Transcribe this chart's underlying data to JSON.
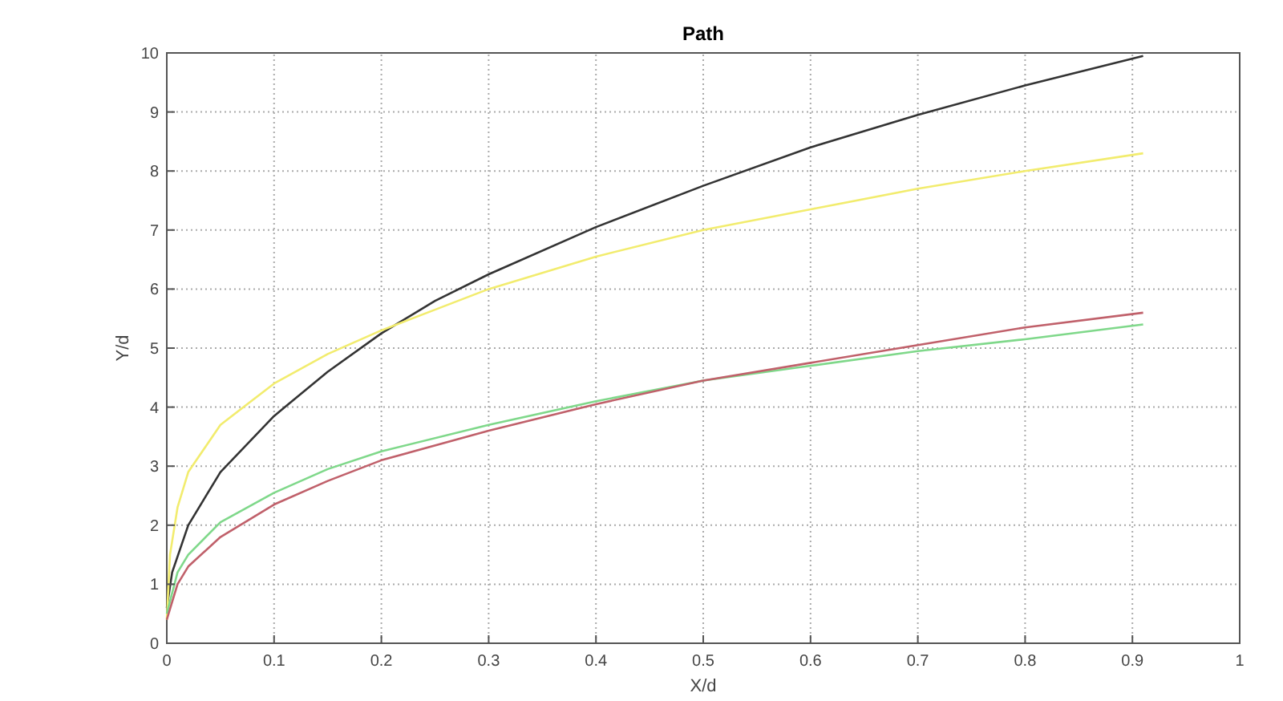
{
  "chart_data": {
    "type": "line",
    "title": "Path",
    "xlabel": "X/d",
    "ylabel": "Y/d",
    "xlim": [
      0,
      1
    ],
    "ylim": [
      0,
      10
    ],
    "xticks": [
      0,
      0.1,
      0.2,
      0.3,
      0.4,
      0.5,
      0.6,
      0.7,
      0.8,
      0.9,
      1
    ],
    "yticks": [
      0,
      1,
      2,
      3,
      4,
      5,
      6,
      7,
      8,
      9,
      10
    ],
    "grid": true,
    "line_style": "solid",
    "marker": "none",
    "series": [
      {
        "color": "#333333",
        "x": [
          0,
          0.005,
          0.02,
          0.05,
          0.1,
          0.15,
          0.2,
          0.25,
          0.3,
          0.4,
          0.5,
          0.6,
          0.7,
          0.8,
          0.91
        ],
        "values": [
          0.6,
          1.2,
          2.0,
          2.9,
          3.85,
          4.6,
          5.25,
          5.8,
          6.25,
          7.05,
          7.75,
          8.4,
          8.95,
          9.45,
          9.95
        ]
      },
      {
        "color": "#f2ec6e",
        "x": [
          0,
          0.003,
          0.01,
          0.02,
          0.05,
          0.1,
          0.15,
          0.2,
          0.25,
          0.3,
          0.4,
          0.5,
          0.6,
          0.7,
          0.8,
          0.91
        ],
        "values": [
          0.4,
          1.5,
          2.3,
          2.9,
          3.7,
          4.4,
          4.9,
          5.3,
          5.65,
          6.0,
          6.55,
          7.0,
          7.35,
          7.7,
          8.0,
          8.3
        ]
      },
      {
        "color": "#7fd88a",
        "x": [
          0,
          0.01,
          0.02,
          0.05,
          0.1,
          0.15,
          0.2,
          0.3,
          0.4,
          0.5,
          0.6,
          0.7,
          0.8,
          0.91
        ],
        "values": [
          0.5,
          1.2,
          1.5,
          2.05,
          2.55,
          2.95,
          3.25,
          3.7,
          4.1,
          4.45,
          4.7,
          4.95,
          5.15,
          5.4
        ]
      },
      {
        "color": "#c0606a",
        "x": [
          0,
          0.01,
          0.02,
          0.05,
          0.1,
          0.15,
          0.2,
          0.3,
          0.4,
          0.5,
          0.6,
          0.7,
          0.8,
          0.91
        ],
        "values": [
          0.4,
          1.0,
          1.3,
          1.8,
          2.35,
          2.75,
          3.1,
          3.6,
          4.05,
          4.45,
          4.75,
          5.05,
          5.35,
          5.6
        ]
      }
    ]
  }
}
